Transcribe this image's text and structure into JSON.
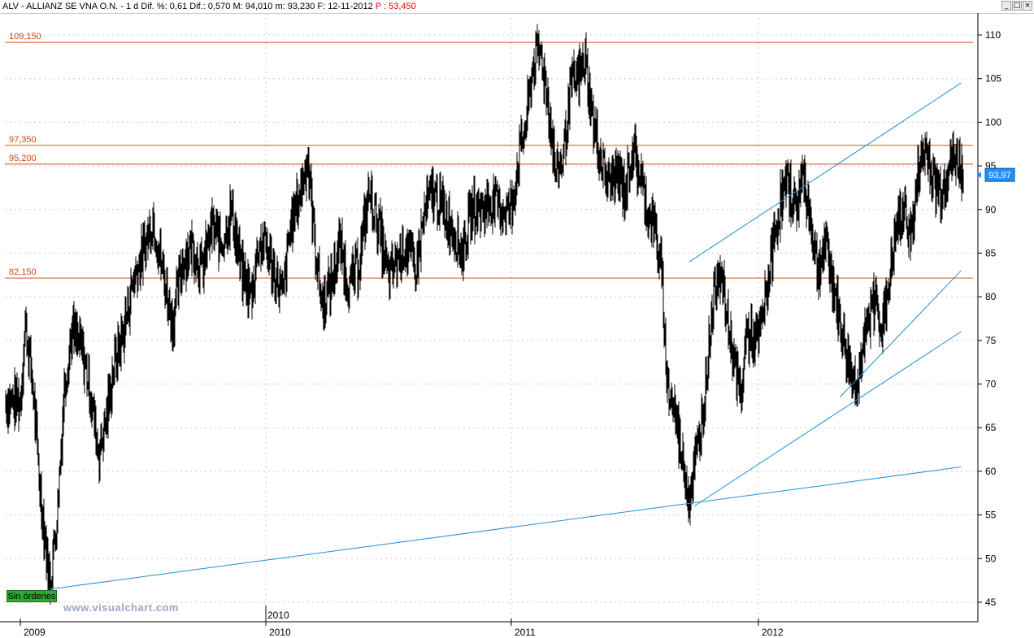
{
  "header": {
    "title": "ALV - ALLIANZ SE VNA O.N. - 1 d Dif. %: 0,61  Dif.: 0,570  M: 94,010  m: 93,230  F: 12-11-2012",
    "price": "P : 53,450",
    "buttons": [
      "_",
      "□",
      "×"
    ]
  },
  "badge": {
    "label": "Sin órdenes"
  },
  "watermark": "www.visualchart.com",
  "chart_data": {
    "type": "line",
    "series_kind": "daily price bars",
    "ylim": [
      43,
      113
    ],
    "yticks": [
      45,
      50,
      55,
      60,
      65,
      70,
      75,
      80,
      85,
      90,
      95,
      100,
      105,
      110
    ],
    "x_axis_labels": [
      "2009",
      "2010",
      "2011",
      "2012"
    ],
    "x_inner_label": "2010",
    "last_price_label": "93,97",
    "last_price": 93.97,
    "horizontal_levels": [
      {
        "value": 109.15,
        "label": "109,150"
      },
      {
        "value": 97.35,
        "label": "97,350"
      },
      {
        "value": 95.2,
        "label": "95,200"
      },
      {
        "value": 82.15,
        "label": "82,150"
      }
    ],
    "price_path": [
      [
        0.0,
        68
      ],
      [
        0.02,
        77
      ],
      [
        0.05,
        70
      ],
      [
        0.08,
        58
      ],
      [
        0.12,
        47
      ],
      [
        0.15,
        55
      ],
      [
        0.18,
        70
      ],
      [
        0.21,
        76
      ],
      [
        0.25,
        74
      ],
      [
        0.28,
        70
      ],
      [
        0.32,
        62
      ],
      [
        0.35,
        66
      ],
      [
        0.38,
        72
      ],
      [
        0.42,
        76
      ],
      [
        0.46,
        82
      ],
      [
        0.5,
        85
      ],
      [
        0.54,
        89
      ],
      [
        0.58,
        83
      ],
      [
        0.62,
        77
      ],
      [
        0.66,
        84
      ],
      [
        0.7,
        86
      ],
      [
        0.74,
        83
      ],
      [
        0.78,
        88
      ],
      [
        0.82,
        86
      ],
      [
        0.86,
        90
      ],
      [
        0.9,
        83
      ],
      [
        0.94,
        80
      ],
      [
        0.97,
        86
      ],
      [
        1.0,
        86
      ],
      [
        1.03,
        83
      ],
      [
        1.07,
        80
      ],
      [
        1.1,
        88
      ],
      [
        1.14,
        92
      ],
      [
        1.17,
        96
      ],
      [
        1.2,
        86
      ],
      [
        1.23,
        79
      ],
      [
        1.27,
        82
      ],
      [
        1.3,
        86
      ],
      [
        1.34,
        81
      ],
      [
        1.38,
        84
      ],
      [
        1.42,
        92
      ],
      [
        1.46,
        88
      ],
      [
        1.5,
        82
      ],
      [
        1.53,
        84
      ],
      [
        1.57,
        86
      ],
      [
        1.61,
        83
      ],
      [
        1.65,
        90
      ],
      [
        1.68,
        92
      ],
      [
        1.72,
        90
      ],
      [
        1.76,
        88
      ],
      [
        1.8,
        85
      ],
      [
        1.84,
        90
      ],
      [
        1.88,
        90
      ],
      [
        1.92,
        91
      ],
      [
        1.96,
        90
      ],
      [
        2.0,
        90
      ],
      [
        2.03,
        96
      ],
      [
        2.06,
        100
      ],
      [
        2.09,
        107
      ],
      [
        2.12,
        108
      ],
      [
        2.15,
        102
      ],
      [
        2.18,
        94
      ],
      [
        2.21,
        96
      ],
      [
        2.24,
        104
      ],
      [
        2.27,
        105
      ],
      [
        2.3,
        107
      ],
      [
        2.33,
        100
      ],
      [
        2.36,
        96
      ],
      [
        2.39,
        93
      ],
      [
        2.43,
        94
      ],
      [
        2.46,
        92
      ],
      [
        2.49,
        97
      ],
      [
        2.52,
        94
      ],
      [
        2.55,
        90
      ],
      [
        2.58,
        88
      ],
      [
        2.61,
        82
      ],
      [
        2.63,
        70
      ],
      [
        2.66,
        67
      ],
      [
        2.69,
        62
      ],
      [
        2.72,
        57
      ],
      [
        2.75,
        62
      ],
      [
        2.78,
        68
      ],
      [
        2.81,
        78
      ],
      [
        2.84,
        84
      ],
      [
        2.87,
        78
      ],
      [
        2.9,
        73
      ],
      [
        2.93,
        68
      ],
      [
        2.95,
        76
      ],
      [
        2.98,
        75
      ],
      [
        3.0,
        75
      ],
      [
        3.03,
        80
      ],
      [
        3.06,
        86
      ],
      [
        3.09,
        91
      ],
      [
        3.12,
        93
      ],
      [
        3.15,
        90
      ],
      [
        3.18,
        94
      ],
      [
        3.21,
        89
      ],
      [
        3.24,
        83
      ],
      [
        3.27,
        86
      ],
      [
        3.3,
        82
      ],
      [
        3.33,
        77
      ],
      [
        3.36,
        73
      ],
      [
        3.39,
        70
      ],
      [
        3.42,
        73
      ],
      [
        3.45,
        78
      ],
      [
        3.48,
        80
      ],
      [
        3.5,
        76
      ],
      [
        3.53,
        82
      ],
      [
        3.56,
        88
      ],
      [
        3.59,
        90
      ],
      [
        3.62,
        87
      ],
      [
        3.65,
        95
      ],
      [
        3.68,
        97
      ],
      [
        3.71,
        93
      ],
      [
        3.74,
        92
      ],
      [
        3.77,
        95
      ],
      [
        3.8,
        96
      ],
      [
        3.83,
        93.97
      ]
    ],
    "trend_lines": [
      {
        "from": [
          0.12,
          46.5
        ],
        "to": [
          3.82,
          60.5
        ]
      },
      {
        "from": [
          2.74,
          56
        ],
        "to": [
          3.82,
          76
        ]
      },
      {
        "from": [
          3.33,
          68.5
        ],
        "to": [
          3.82,
          83
        ]
      },
      {
        "from": [
          2.72,
          84
        ],
        "to": [
          3.82,
          104.5
        ]
      }
    ]
  }
}
